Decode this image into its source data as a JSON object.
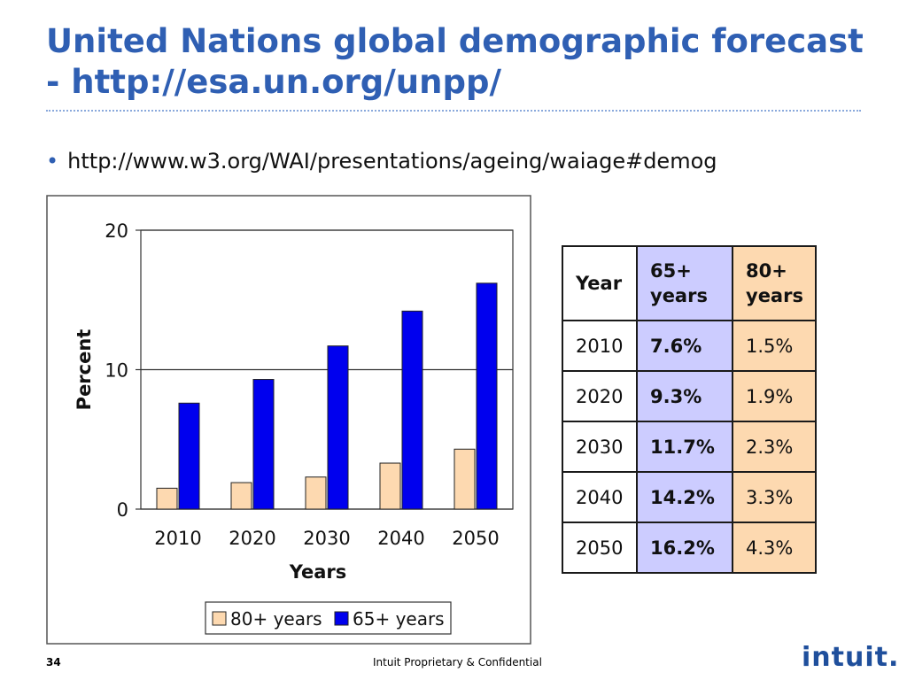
{
  "slide": {
    "title": "United Nations global demographic forecast - http://esa.un.org/unpp/",
    "bullet": "http://www.w3.org/WAI/presentations/ageing/waiage#demog",
    "page_number": "34",
    "footer": "Intuit Proprietary & Confidential",
    "logo": "intuit."
  },
  "colors": {
    "title": "#2f5fb3",
    "series_80": "#fdd9b0",
    "series_65": "#0000ee",
    "col_65": "#ccccff",
    "col_80": "#fdd9b0"
  },
  "chart_data": {
    "type": "bar",
    "categories": [
      "2010",
      "2020",
      "2030",
      "2040",
      "2050"
    ],
    "series": [
      {
        "name": "80+ years",
        "values": [
          1.5,
          1.9,
          2.3,
          3.3,
          4.3
        ],
        "color": "#fdd9b0"
      },
      {
        "name": "65+ years",
        "values": [
          7.6,
          9.3,
          11.7,
          14.2,
          16.2
        ],
        "color": "#0000ee"
      }
    ],
    "xlabel": "Years",
    "ylabel": "Percent",
    "ylim": [
      0,
      20
    ],
    "yticks": [
      0,
      10,
      20
    ],
    "grid": true,
    "legend": "bottom"
  },
  "table": {
    "headers": [
      "Year",
      "65+ years",
      "80+ years"
    ],
    "rows": [
      [
        "2010",
        "7.6%",
        "1.5%"
      ],
      [
        "2020",
        "9.3%",
        "1.9%"
      ],
      [
        "2030",
        "11.7%",
        "2.3%"
      ],
      [
        "2040",
        "14.2%",
        "3.3%"
      ],
      [
        "2050",
        "16.2%",
        "4.3%"
      ]
    ]
  }
}
